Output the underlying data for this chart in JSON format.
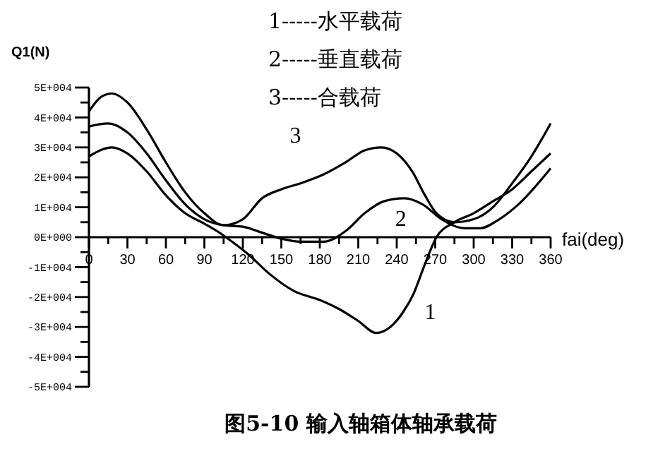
{
  "chart_data": {
    "type": "line",
    "title": "图5-10  输入轴箱体轴承载荷",
    "xlabel": "fai(deg)",
    "ylabel": "Q1(N)",
    "annotations": [
      "1-----水平载荷",
      "2-----垂直载荷",
      "3-----合载荷",
      {
        "text": "1",
        "x": 253,
        "y": -19000
      },
      {
        "text": "2",
        "x": 230,
        "y": 12000
      },
      {
        "text": "3",
        "x": 183,
        "y": 21000
      }
    ],
    "xlim": [
      0,
      360
    ],
    "ylim": [
      -50000,
      50000
    ],
    "xticks": [
      0,
      {
        "value": 15,
        "label": null
      },
      30,
      {
        "value": 45,
        "label": null
      },
      60,
      {
        "value": 75,
        "label": null
      },
      90,
      {
        "value": 105,
        "label": null
      },
      120,
      {
        "value": 135,
        "label": null
      },
      150,
      {
        "value": 165,
        "label": null
      },
      180,
      {
        "value": 195,
        "label": null
      },
      210,
      {
        "value": 225,
        "label": null
      },
      240,
      {
        "value": 255,
        "label": null
      },
      270,
      {
        "value": 285,
        "label": null
      },
      300,
      {
        "value": 315,
        "label": null
      },
      330,
      {
        "value": 345,
        "label": null
      },
      360
    ],
    "yticks": [
      {
        "value": -50000,
        "label": "-5E+004"
      },
      {
        "value": -45000,
        "label": null
      },
      {
        "value": -40000,
        "label": "-4E+004"
      },
      {
        "value": -35000,
        "label": null
      },
      {
        "value": -30000,
        "label": "-3E+004"
      },
      {
        "value": -25000,
        "label": null
      },
      {
        "value": -20000,
        "label": "-2E+004"
      },
      {
        "value": -15000,
        "label": null
      },
      {
        "value": -10000,
        "label": "-1E+004"
      },
      {
        "value": -5000,
        "label": null
      },
      {
        "value": 0,
        "label": "0E+000"
      },
      {
        "value": 5000,
        "label": null
      },
      {
        "value": 10000,
        "label": "1E+004"
      },
      {
        "value": 15000,
        "label": null
      },
      {
        "value": 20000,
        "label": "2E+004"
      },
      {
        "value": 25000,
        "label": null
      },
      {
        "value": 30000,
        "label": "3E+004"
      },
      {
        "value": 35000,
        "label": null
      },
      {
        "value": 40000,
        "label": "4E+004"
      },
      {
        "value": 45000,
        "label": null
      },
      {
        "value": 50000,
        "label": "5E+004"
      }
    ],
    "grid": false,
    "marker": "none",
    "line_style": "solid",
    "series": [
      {
        "color": "#000000",
        "x": [
          0,
          18,
          30,
          45,
          60,
          75,
          90,
          100,
          110,
          125,
          140,
          160,
          180,
          195,
          210,
          224,
          235,
          245,
          253,
          262,
          271,
          285,
          300,
          315,
          330,
          345,
          360
        ],
        "values": [
          27000,
          30000,
          28000,
          22000,
          14000,
          8000,
          4500,
          2000,
          -1000,
          -6000,
          -12000,
          -18000,
          -21000,
          -24000,
          -28000,
          -32000,
          -30000,
          -25000,
          -19000,
          -9000,
          0,
          5000,
          8000,
          12000,
          16000,
          22000,
          28000
        ]
      },
      {
        "color": "#000000",
        "x": [
          0,
          15,
          30,
          45,
          60,
          75,
          90,
          105,
          120,
          135,
          150,
          165,
          183,
          200,
          215,
          230,
          246,
          260,
          275,
          293,
          305,
          320,
          335,
          360
        ],
        "values": [
          37000,
          38000,
          35000,
          28000,
          19000,
          11000,
          6000,
          4000,
          3500,
          1500,
          -500,
          -1500,
          -1500,
          2000,
          8000,
          12000,
          13000,
          11000,
          6000,
          3000,
          3000,
          6000,
          11000,
          23000
        ]
      },
      {
        "color": "#000000",
        "x": [
          0,
          10,
          18,
          30,
          45,
          60,
          75,
          90,
          105,
          120,
          135,
          150,
          165,
          183,
          200,
          215,
          228,
          240,
          252,
          262,
          271,
          285,
          300,
          315,
          330,
          345,
          360
        ],
        "values": [
          42000,
          47000,
          48000,
          45000,
          36000,
          25000,
          15000,
          8000,
          4000,
          6000,
          13000,
          16000,
          18000,
          21000,
          25000,
          29000,
          30000,
          28000,
          22000,
          14000,
          8000,
          5000,
          6000,
          10000,
          18000,
          27000,
          38000
        ]
      }
    ]
  }
}
